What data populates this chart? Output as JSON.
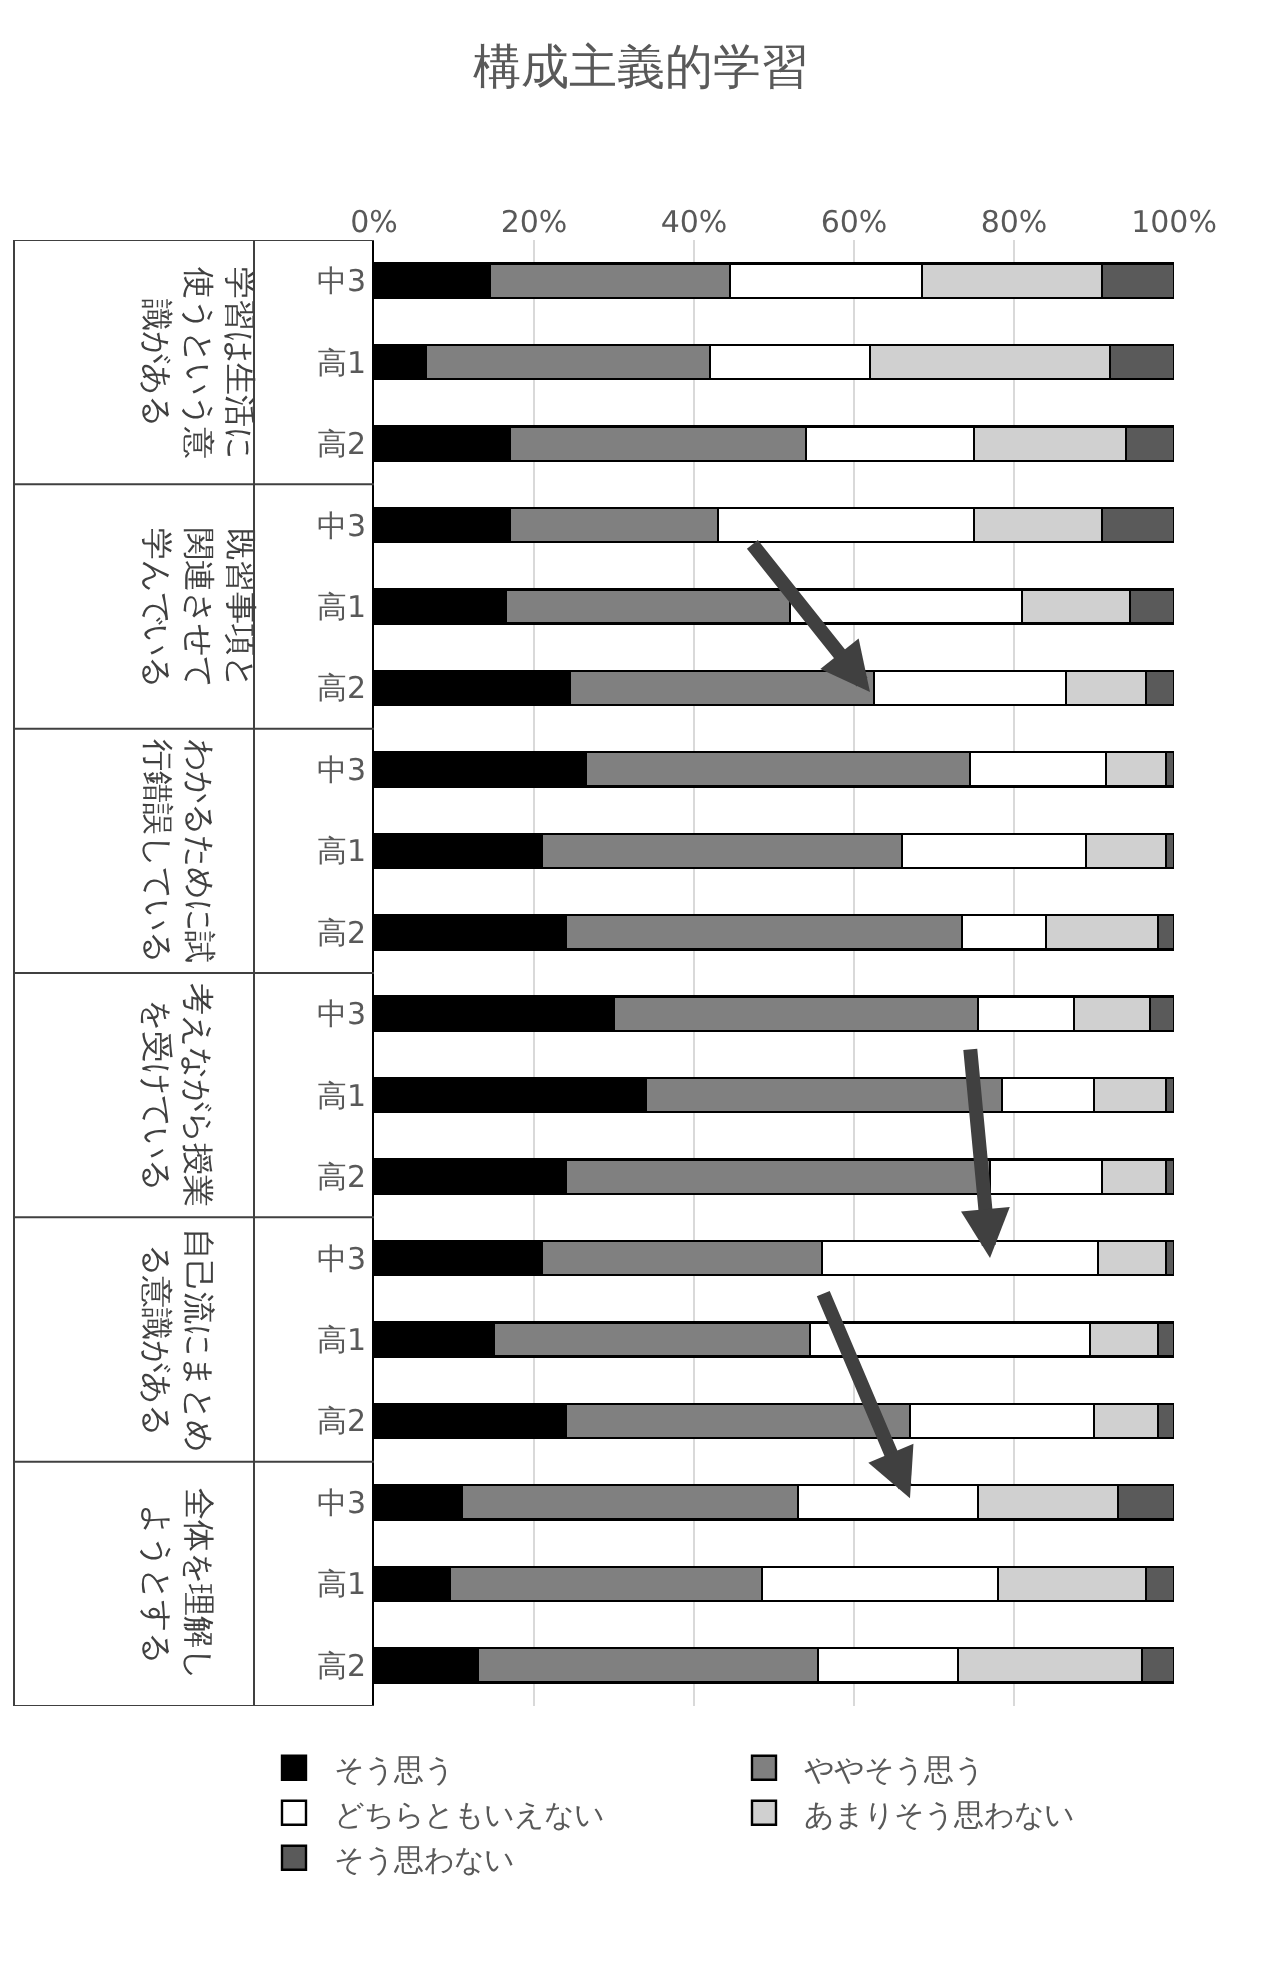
{
  "chart_data": {
    "type": "bar",
    "title": "構成主義的学習",
    "orientation": "horizontal",
    "stacked": true,
    "categories": [
      "中3",
      "高1",
      "高2",
      "中3",
      "高1",
      "高2",
      "中3",
      "高1",
      "高2",
      "中3",
      "高1",
      "高2",
      "中3",
      "高1",
      "高2",
      "中3",
      "高1",
      "高2"
    ],
    "annotations": [
      "学習は生活に使うという意識がある",
      "既習事項と関連させて学んでいる",
      "わかるために試行錯誤している",
      "考えながら授業を受けている",
      "自己流にまとめる意識がある",
      "全体を理解しようとする"
    ],
    "series": [
      {
        "name": "そう思う",
        "color": "#000000",
        "values": [
          14.5,
          6.5,
          17,
          17,
          16.5,
          24.5,
          26.5,
          21,
          24,
          30,
          34,
          24,
          21,
          15,
          24,
          11,
          9.5,
          13
        ]
      },
      {
        "name": "ややそう思う",
        "color": "#808080",
        "values": [
          30,
          35.5,
          37,
          26,
          35.5,
          38,
          48,
          45,
          49.5,
          45.5,
          44.5,
          53,
          35,
          39.5,
          43,
          42,
          39,
          42.5
        ]
      },
      {
        "name": "どちらともいえない",
        "color": "#ffffff",
        "values": [
          24,
          20,
          21,
          32,
          29,
          24,
          17,
          23,
          10.5,
          12,
          11.5,
          14,
          34.5,
          35,
          23,
          22.5,
          29.5,
          17.5
        ]
      },
      {
        "name": "あまりそう思わない",
        "color": "#d0d0d0",
        "values": [
          22.5,
          30,
          19,
          16,
          13.5,
          10,
          7.5,
          10,
          14,
          9.5,
          9,
          8,
          8.5,
          8.5,
          8,
          17.5,
          18.5,
          23
        ]
      },
      {
        "name": "そう思わない",
        "color": "#5a5a5a",
        "values": [
          9,
          8,
          6,
          9,
          5.5,
          3.5,
          1,
          1,
          2,
          3,
          1,
          1,
          1,
          2,
          2,
          7,
          3.5,
          4
        ]
      }
    ],
    "xlim": [
      0,
      100
    ],
    "xticks": [
      {
        "value": 0,
        "label": "0%"
      },
      {
        "value": 20,
        "label": "20%"
      },
      {
        "value": 40,
        "label": "40%"
      },
      {
        "value": 60,
        "label": "60%"
      },
      {
        "value": 80,
        "label": "80%"
      },
      {
        "value": 100,
        "label": "100%"
      }
    ],
    "grid": "x",
    "legend": "bottom"
  }
}
